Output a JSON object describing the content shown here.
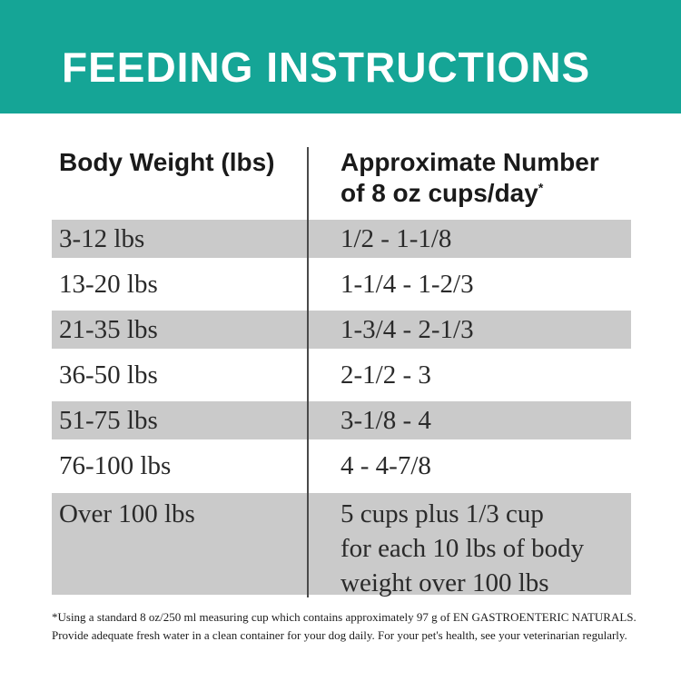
{
  "banner": {
    "title": "FEEDING INSTRUCTIONS"
  },
  "table": {
    "col1_header": "Body Weight (lbs)",
    "col2_header_line1": "Approximate Number",
    "col2_header_line2": "of 8 oz cups/day",
    "col2_footnote_marker": "*",
    "rows": [
      {
        "weight": "3-12 lbs",
        "cups": "1/2 - 1-1/8"
      },
      {
        "weight": "13-20 lbs",
        "cups": "1-1/4 - 1-2/3"
      },
      {
        "weight": "21-35 lbs",
        "cups": "1-3/4 - 2-1/3"
      },
      {
        "weight": "36-50 lbs",
        "cups": "2-1/2 - 3"
      },
      {
        "weight": "51-75 lbs",
        "cups": "3-1/8 - 4"
      },
      {
        "weight": "76-100 lbs",
        "cups": "4 - 4-7/8"
      },
      {
        "weight": "Over 100 lbs",
        "cups_lines": {
          "0": "5 cups plus 1/3 cup",
          "1": "for each 10 lbs of body",
          "2": "weight over 100 lbs"
        }
      }
    ]
  },
  "footnote": {
    "lines": {
      "0": "*Using a standard 8 oz/250 ml measuring cup which contains approximately 97 g of EN GASTROENTERIC NATURALS.",
      "1": "Provide adequate fresh water in a clean container for your dog daily. For your pet's health, see your veterinarian regularly."
    }
  },
  "colors": {
    "banner_teal": "#15a596",
    "row_gray": "#cacaca",
    "divider_gray": "#4a4a4a"
  }
}
